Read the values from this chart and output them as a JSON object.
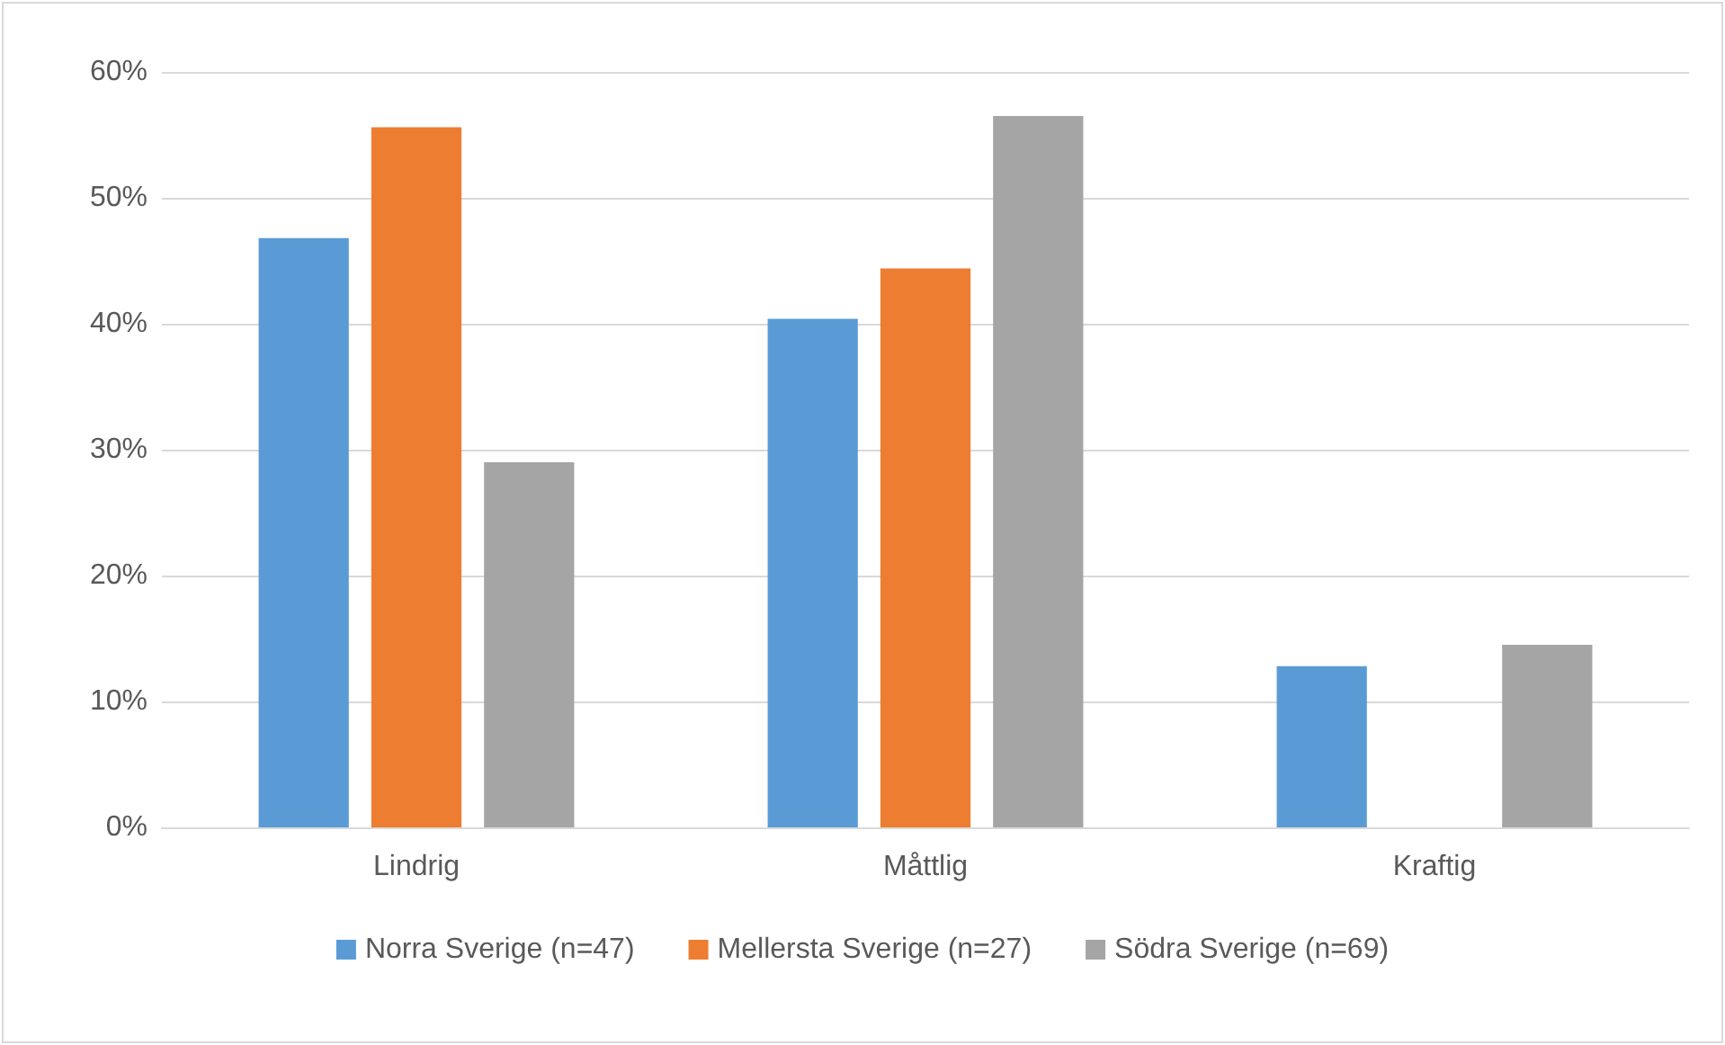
{
  "chart_data": {
    "type": "bar",
    "categories": [
      "Lindrig",
      "Måttlig",
      "Kraftig"
    ],
    "series": [
      {
        "name": "Norra Sverige (n=47)",
        "color": "#5b9bd5",
        "values": [
          46.8,
          40.4,
          12.8
        ]
      },
      {
        "name": "Mellersta Sverige (n=27)",
        "color": "#ed7d31",
        "values": [
          55.6,
          44.4,
          0
        ]
      },
      {
        "name": "Södra Sverige (n=69)",
        "color": "#a5a5a5",
        "values": [
          29.0,
          56.5,
          14.5
        ]
      }
    ],
    "ylim": [
      0,
      60
    ],
    "yticks": [
      {
        "value": 0,
        "label": "0%"
      },
      {
        "value": 10,
        "label": "10%"
      },
      {
        "value": 20,
        "label": "20%"
      },
      {
        "value": 30,
        "label": "30%"
      },
      {
        "value": 40,
        "label": "40%"
      },
      {
        "value": 50,
        "label": "50%"
      },
      {
        "value": 60,
        "label": "60%"
      }
    ],
    "grid": "y",
    "legend": "bottom"
  }
}
